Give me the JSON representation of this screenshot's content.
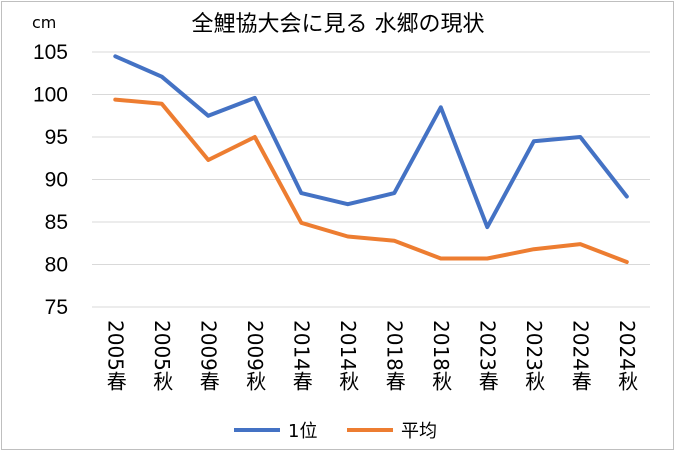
{
  "chart_data": {
    "type": "line",
    "title": "全鯉協大会に見る 水郷の現状",
    "unit": "cm",
    "categories": [
      "2005春",
      "2005秋",
      "2009春",
      "2009秋",
      "2014春",
      "2014秋",
      "2018春",
      "2018秋",
      "2023春",
      "2023秋",
      "2024春",
      "2024秋"
    ],
    "series": [
      {
        "name": "1位",
        "color": "#4472c4",
        "values": [
          104.5,
          102.1,
          97.5,
          99.6,
          88.4,
          87.1,
          88.4,
          98.5,
          84.4,
          94.5,
          95.0,
          88.0
        ]
      },
      {
        "name": "平均",
        "color": "#ed7d31",
        "values": [
          99.4,
          98.9,
          92.3,
          95.0,
          84.9,
          83.3,
          82.8,
          80.7,
          80.7,
          81.8,
          82.4,
          80.3
        ]
      }
    ],
    "ylim": [
      75,
      105
    ],
    "yticks": [
      "75",
      "80",
      "85",
      "90",
      "95",
      "100",
      "105"
    ],
    "grid": true,
    "legend": "bottom"
  }
}
